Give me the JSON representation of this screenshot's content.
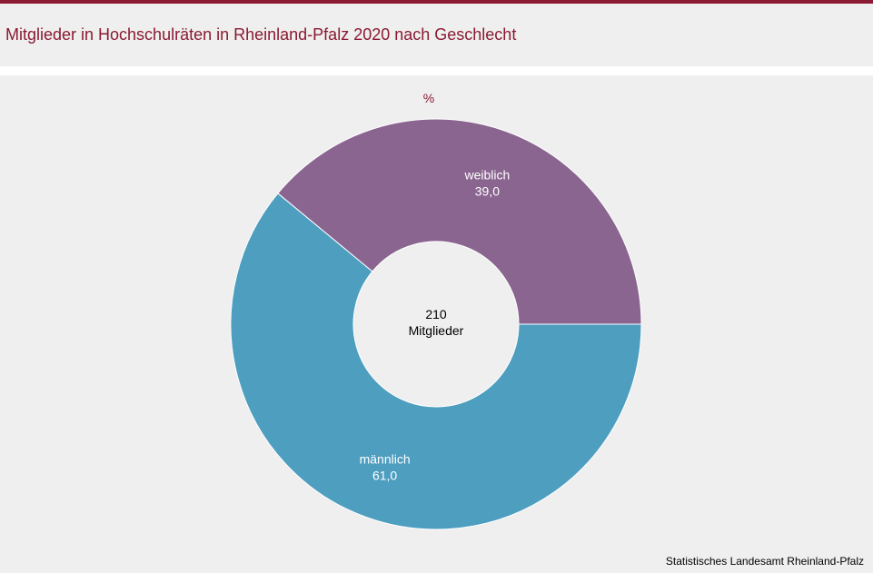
{
  "title": "Mitglieder in Hochschulräten in Rheinland-Pfalz 2020 nach Geschlecht",
  "source": "Statistisches Landesamt Rheinland-Pfalz",
  "colors": {
    "accent": "#8b1a32",
    "weiblich": "#8a6590",
    "maennlich": "#4e9ec0"
  },
  "chart_data": {
    "type": "pie",
    "variant": "donut",
    "unit": "%",
    "center_value": "210",
    "center_label": "Mitglieder",
    "slices": [
      {
        "label": "weiblich",
        "value": 39.0,
        "value_label": "39,0",
        "color": "#8a6590"
      },
      {
        "label": "männlich",
        "value": 61.0,
        "value_label": "61,0",
        "color": "#4e9ec0"
      }
    ]
  }
}
